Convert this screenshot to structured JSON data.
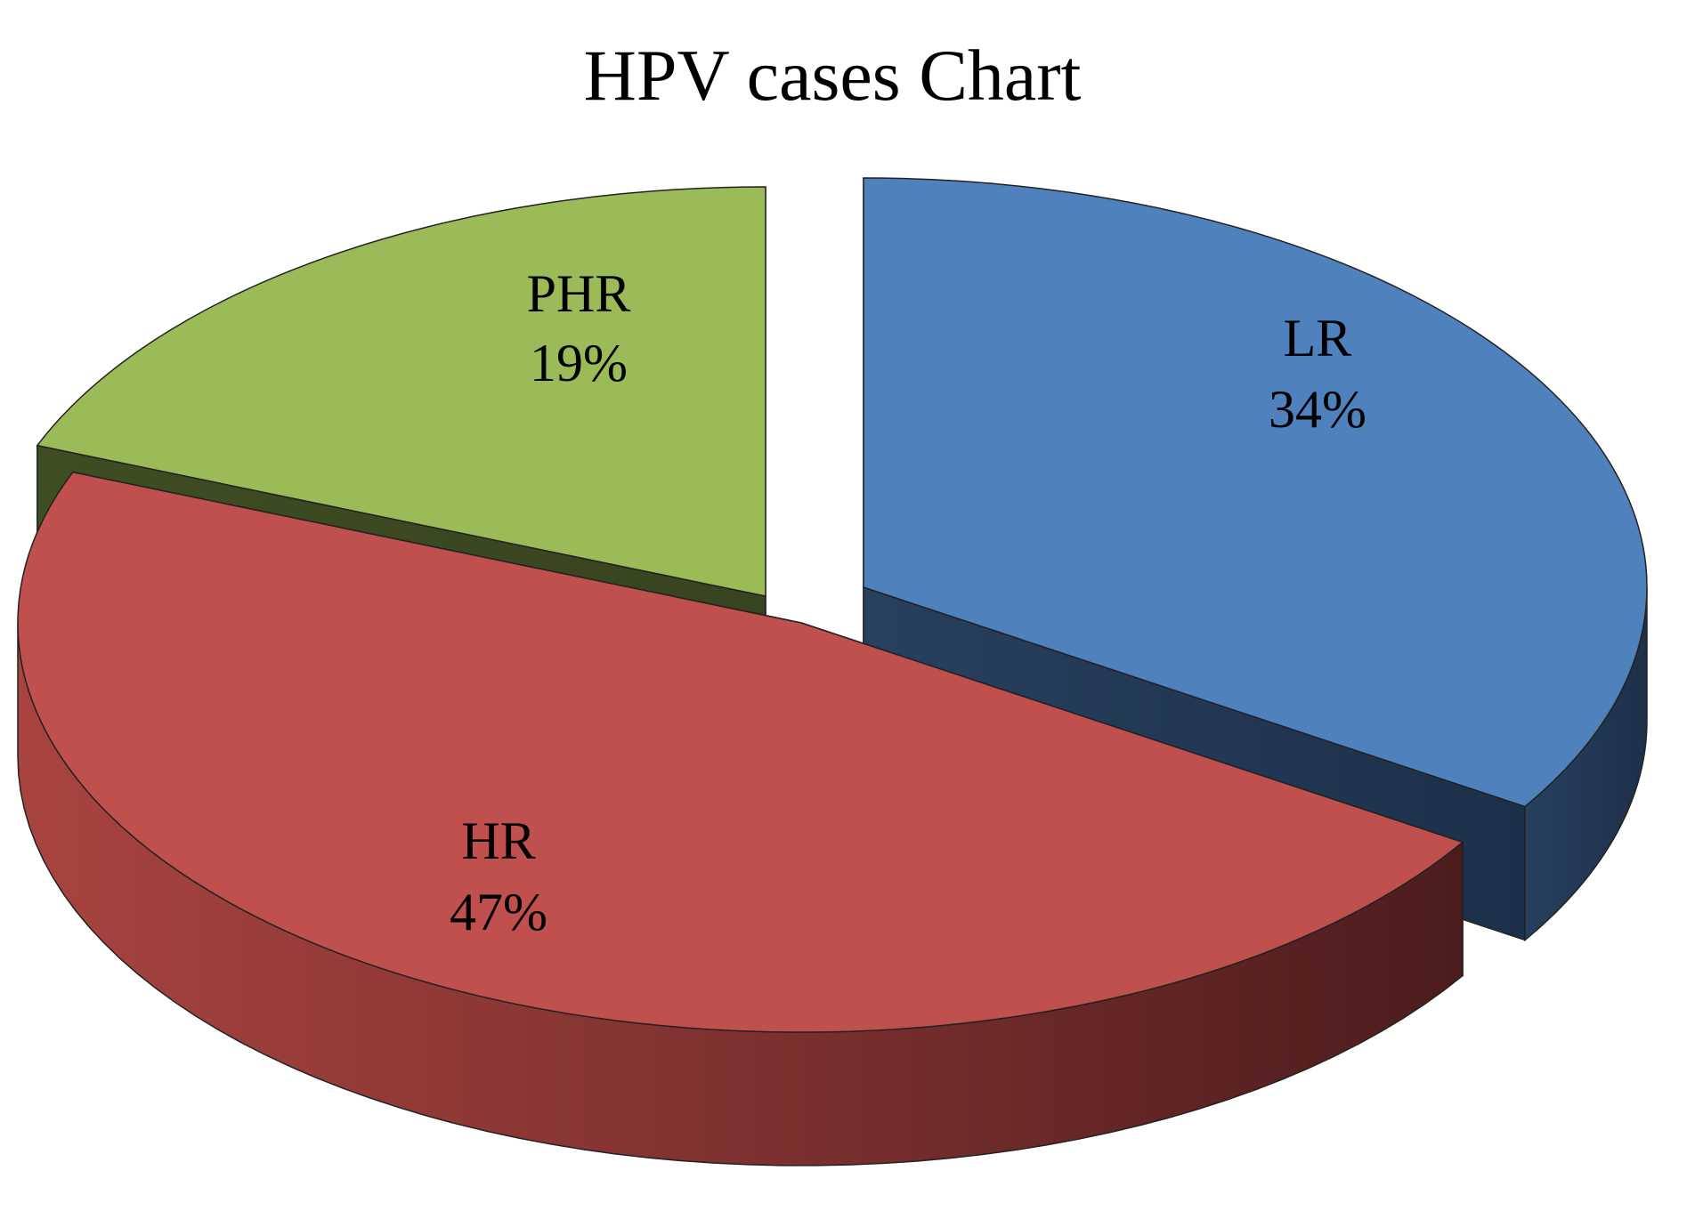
{
  "chart_data": {
    "type": "pie",
    "title": "HPV cases Chart",
    "categories": [
      "LR",
      "HR",
      "PHR"
    ],
    "values": [
      34,
      47,
      19
    ],
    "value_labels": [
      "34%",
      "47%",
      "19%"
    ],
    "colors": {
      "LR": "#4F81BD",
      "HR": "#C0504D",
      "PHR": "#9BBB59"
    },
    "exploded": true,
    "three_d": true,
    "legend": "none"
  }
}
